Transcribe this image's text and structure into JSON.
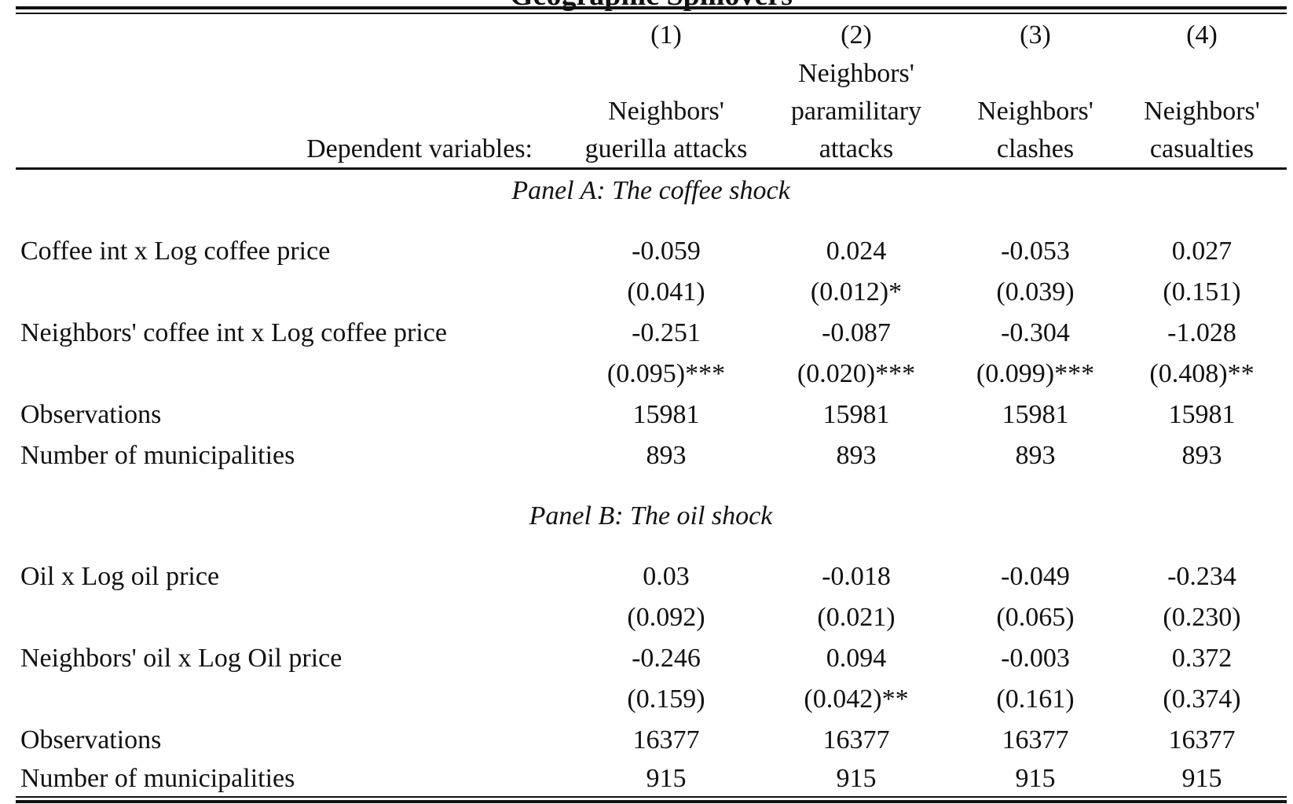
{
  "table": {
    "title": "Geographic Spillovers",
    "columns": [
      {
        "number": "(1)",
        "header_lines": [
          "",
          "Neighbors'",
          "guerilla attacks"
        ]
      },
      {
        "number": "(2)",
        "header_lines": [
          "Neighbors'",
          "paramilitary",
          "attacks"
        ]
      },
      {
        "number": "(3)",
        "header_lines": [
          "",
          "Neighbors'",
          "clashes"
        ]
      },
      {
        "number": "(4)",
        "header_lines": [
          "",
          "Neighbors'",
          "casualties"
        ]
      }
    ],
    "dependent_label": "Dependent variables:",
    "panel_a": {
      "title": "Panel A: The coffee shock",
      "rows": [
        {
          "label": "Coffee int x Log coffee price",
          "values": [
            "-0.059",
            "0.024",
            "-0.053",
            "0.027"
          ]
        },
        {
          "label": "",
          "values": [
            "(0.041)",
            "(0.012)*",
            "(0.039)",
            "(0.151)"
          ]
        },
        {
          "label": "Neighbors' coffee int x Log coffee price",
          "values": [
            "-0.251",
            "-0.087",
            "-0.304",
            "-1.028"
          ]
        },
        {
          "label": "",
          "values": [
            "(0.095)***",
            "(0.020)***",
            "(0.099)***",
            "(0.408)**"
          ]
        },
        {
          "label": "Observations",
          "values": [
            "15981",
            "15981",
            "15981",
            "15981"
          ]
        },
        {
          "label": "Number of municipalities",
          "values": [
            "893",
            "893",
            "893",
            "893"
          ]
        }
      ]
    },
    "panel_b": {
      "title": "Panel B: The oil shock",
      "rows": [
        {
          "label": "Oil x Log oil price",
          "values": [
            "0.03",
            "-0.018",
            "-0.049",
            "-0.234"
          ]
        },
        {
          "label": "",
          "values": [
            "(0.092)",
            "(0.021)",
            "(0.065)",
            "(0.230)"
          ]
        },
        {
          "label": "Neighbors' oil x Log Oil price",
          "values": [
            "-0.246",
            "0.094",
            "-0.003",
            "0.372"
          ]
        },
        {
          "label": "",
          "values": [
            "(0.159)",
            "(0.042)**",
            "(0.161)",
            "(0.374)"
          ]
        },
        {
          "label": "Observations",
          "values": [
            "16377",
            "16377",
            "16377",
            "16377"
          ]
        },
        {
          "label": "Number of municipalities",
          "values": [
            "915",
            "915",
            "915",
            "915"
          ]
        }
      ]
    }
  }
}
